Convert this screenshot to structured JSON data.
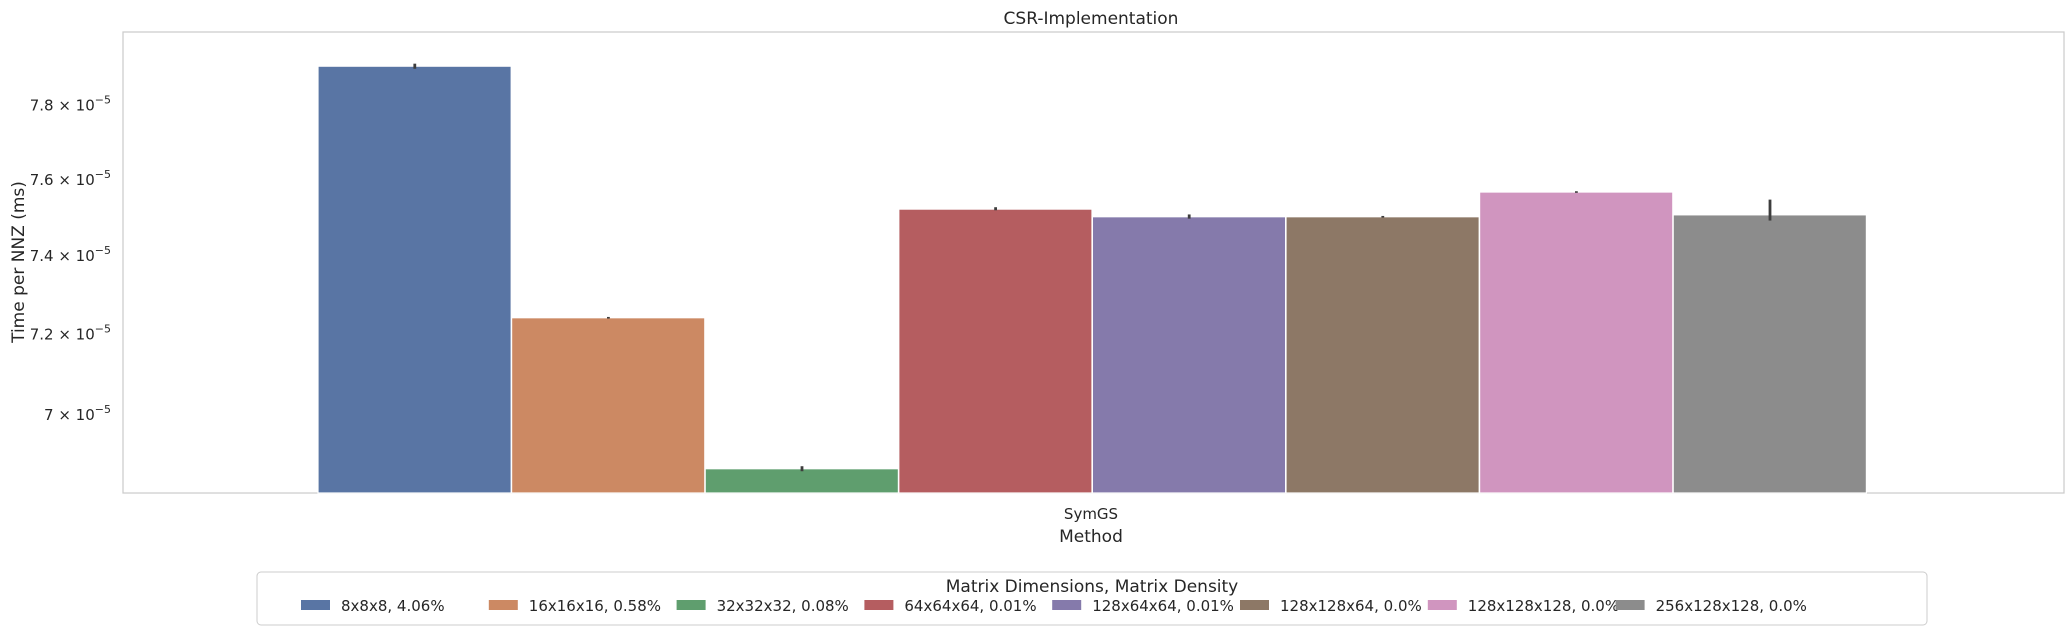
{
  "chart_data": {
    "type": "bar",
    "title": "CSR-Implementation",
    "xlabel": "Method",
    "ylabel": "Time per NNZ (ms)",
    "y_scale": "log",
    "ylim": [
      6.81e-05,
      8e-05
    ],
    "grid": false,
    "categories": [
      "SymGS"
    ],
    "y_ticks": [
      {
        "value": 7e-05,
        "mantissa": "7",
        "exponent": "−5"
      },
      {
        "value": 7.2e-05,
        "mantissa": "7.2",
        "exponent": "−5"
      },
      {
        "value": 7.4e-05,
        "mantissa": "7.4",
        "exponent": "−5"
      },
      {
        "value": 7.6e-05,
        "mantissa": "7.6",
        "exponent": "−5"
      },
      {
        "value": 7.8e-05,
        "mantissa": "7.8",
        "exponent": "−5"
      }
    ],
    "legend": {
      "title": "Matrix Dimensions, Matrix Density",
      "placement": "bottom-center"
    },
    "series": [
      {
        "name": "8x8x8, 4.06%",
        "color": "#5975a4",
        "values": [
          7.905e-05
        ],
        "err_low": [
          7.898e-05
        ],
        "err_high": [
          7.912e-05
        ]
      },
      {
        "name": "16x16x16, 0.58%",
        "color": "#cc8963",
        "values": [
          7.24e-05
        ],
        "err_low": [
          7.24e-05
        ],
        "err_high": [
          7.24e-05
        ]
      },
      {
        "name": "32x32x32, 0.08%",
        "color": "#5f9e6e",
        "values": [
          6.868e-05
        ],
        "err_low": [
          6.862e-05
        ],
        "err_high": [
          6.874e-05
        ]
      },
      {
        "name": "64x64x64, 0.01%",
        "color": "#b55d60",
        "values": [
          7.52e-05
        ],
        "err_low": [
          7.517e-05
        ],
        "err_high": [
          7.525e-05
        ]
      },
      {
        "name": "128x64x64, 0.01%",
        "color": "#857aab",
        "values": [
          7.5e-05
        ],
        "err_low": [
          7.495e-05
        ],
        "err_high": [
          7.506e-05
        ]
      },
      {
        "name": "128x128x64, 0.0%",
        "color": "#8d7866",
        "values": [
          7.5e-05
        ],
        "err_low": [
          7.5e-05
        ],
        "err_high": [
          7.5e-05
        ]
      },
      {
        "name": "128x128x128, 0.0%",
        "color": "#d095bf",
        "values": [
          7.565e-05
        ],
        "err_low": [
          7.565e-05
        ],
        "err_high": [
          7.565e-05
        ]
      },
      {
        "name": "256x128x128, 0.0%",
        "color": "#8c8c8c",
        "values": [
          7.505e-05
        ],
        "err_low": [
          7.49e-05
        ],
        "err_high": [
          7.545e-05
        ]
      }
    ]
  }
}
